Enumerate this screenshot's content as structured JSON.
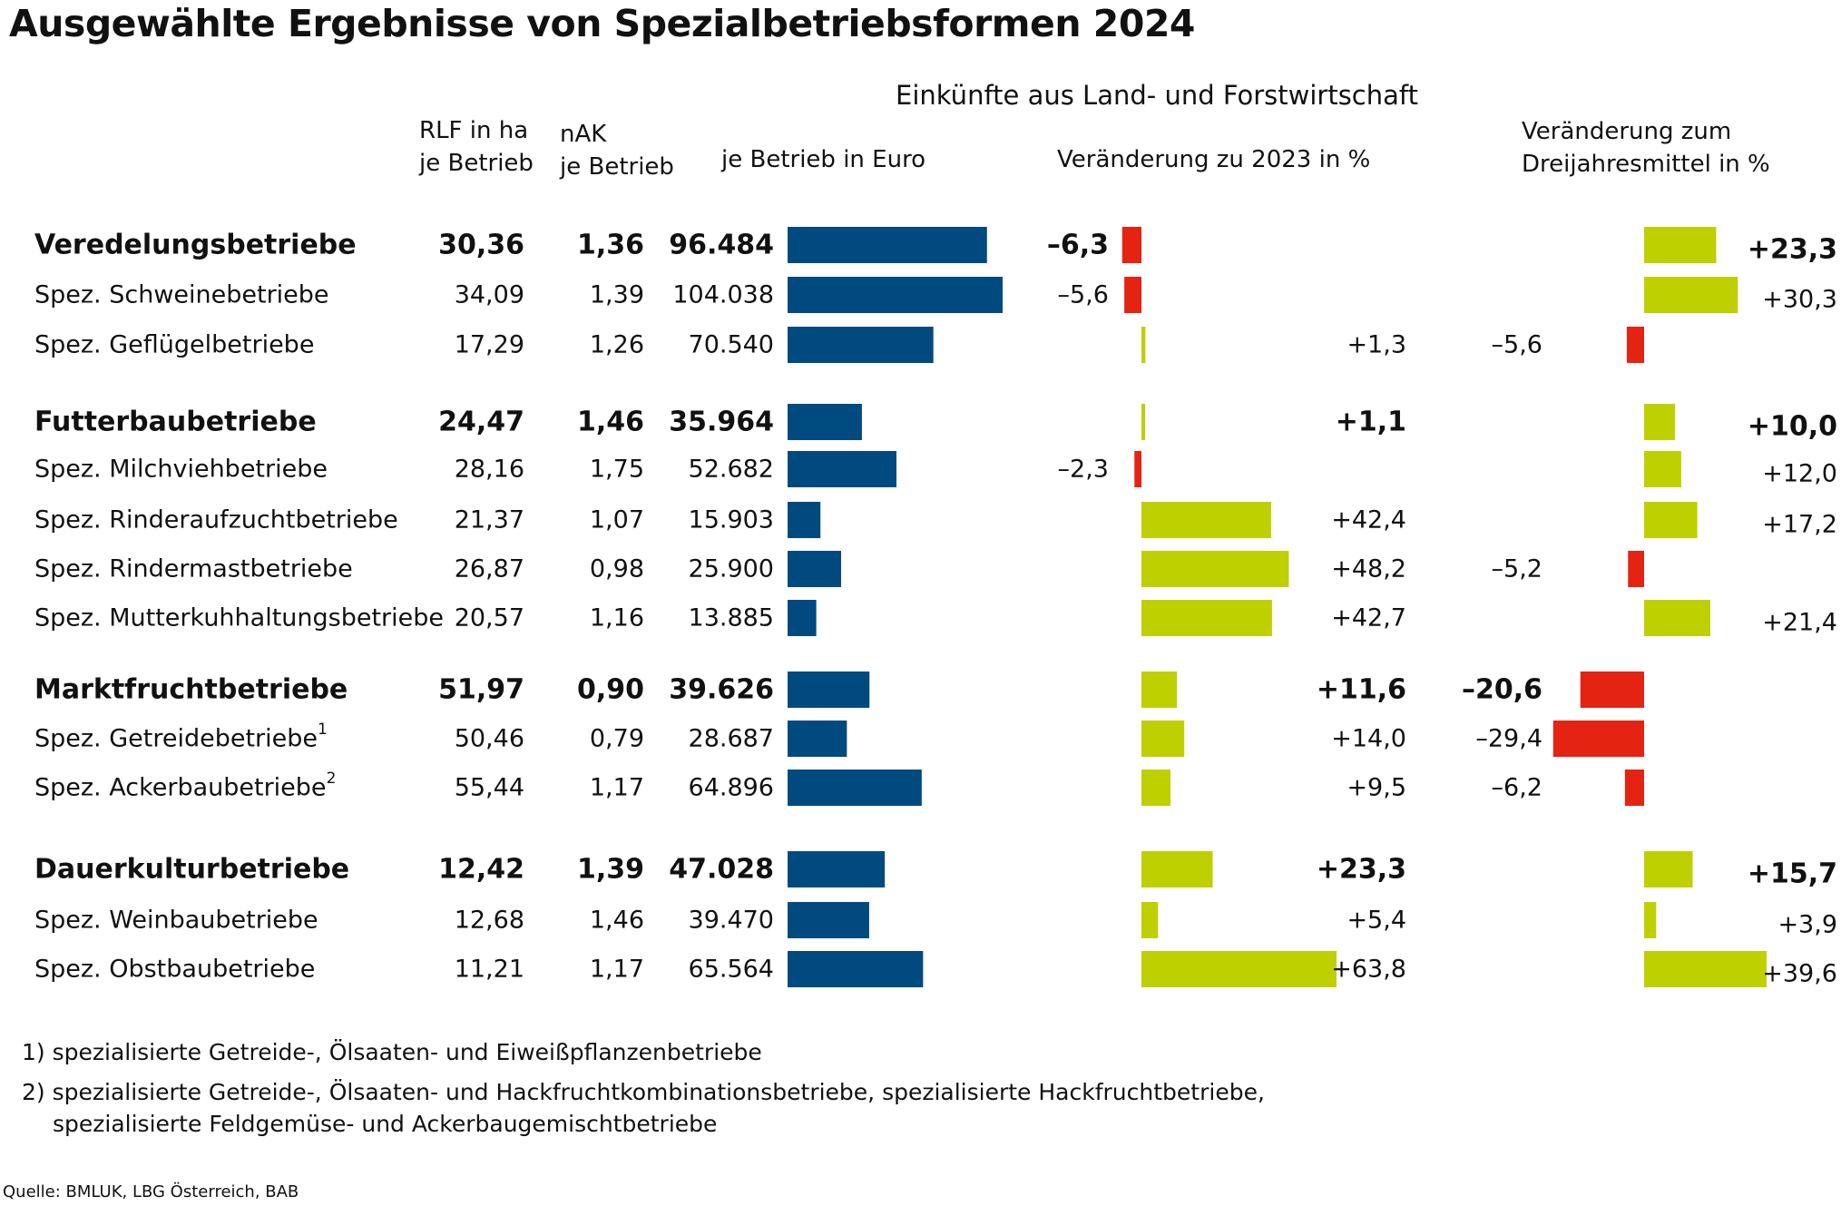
{
  "title": "Ausgewählte Ergebnisse von Spezialbetriebsformen 2024",
  "headers": {
    "rlf_line1": "RLF in ha",
    "rlf_line2": "je Betrieb",
    "nak_line1": "nAK",
    "nak_line2": "je Betrieb",
    "einkuenfte_group": "Einkünfte aus Land- und Forstwirtschaft",
    "je_betrieb_euro": "je Betrieb in Euro",
    "veraenderung_2023": "Veränderung zu 2023 in %",
    "dreijahres_line1": "Veränderung zum",
    "dreijahres_line2": "Dreijahresmittel in %"
  },
  "colors": {
    "income_bar": "#004a80",
    "positive_bar": "#bfd000",
    "negative_bar": "#e42313",
    "text": "#111111"
  },
  "chart_data": {
    "type": "bar",
    "rows": [
      {
        "label": "Veredelungsbetriebe",
        "sup": "",
        "bold": true,
        "rlf": "30,36",
        "nak": "1,36",
        "einkuenfte": 96484,
        "einkuenfte_label": "96.484",
        "chg2023": -6.3,
        "chg2023_label": "–6,3",
        "chg3y": 23.3,
        "chg3y_label": "+23,3"
      },
      {
        "label": "Spez. Schweinebetriebe",
        "sup": "",
        "bold": false,
        "rlf": "34,09",
        "nak": "1,39",
        "einkuenfte": 104038,
        "einkuenfte_label": "104.038",
        "chg2023": -5.6,
        "chg2023_label": "–5,6",
        "chg3y": 30.3,
        "chg3y_label": "+30,3"
      },
      {
        "label": "Spez. Geflügelbetriebe",
        "sup": "",
        "bold": false,
        "rlf": "17,29",
        "nak": "1,26",
        "einkuenfte": 70540,
        "einkuenfte_label": "70.540",
        "chg2023": 1.3,
        "chg2023_label": "+1,3",
        "chg3y": -5.6,
        "chg3y_label": "–5,6"
      },
      {
        "label": "Futterbaubetriebe",
        "sup": "",
        "bold": true,
        "rlf": "24,47",
        "nak": "1,46",
        "einkuenfte": 35964,
        "einkuenfte_label": "35.964",
        "chg2023": 1.1,
        "chg2023_label": "+1,1",
        "chg3y": 10.0,
        "chg3y_label": "+10,0"
      },
      {
        "label": "Spez. Milchviehbetriebe",
        "sup": "",
        "bold": false,
        "rlf": "28,16",
        "nak": "1,75",
        "einkuenfte": 52682,
        "einkuenfte_label": "52.682",
        "chg2023": -2.3,
        "chg2023_label": "–2,3",
        "chg3y": 12.0,
        "chg3y_label": "+12,0"
      },
      {
        "label": "Spez. Rinderaufzuchtbetriebe",
        "sup": "",
        "bold": false,
        "rlf": "21,37",
        "nak": "1,07",
        "einkuenfte": 15903,
        "einkuenfte_label": "15.903",
        "chg2023": 42.4,
        "chg2023_label": "+42,4",
        "chg3y": 17.2,
        "chg3y_label": "+17,2"
      },
      {
        "label": "Spez. Rindermastbetriebe",
        "sup": "",
        "bold": false,
        "rlf": "26,87",
        "nak": "0,98",
        "einkuenfte": 25900,
        "einkuenfte_label": "25.900",
        "chg2023": 48.2,
        "chg2023_label": "+48,2",
        "chg3y": -5.2,
        "chg3y_label": "–5,2"
      },
      {
        "label": "Spez. Mutterkuhhaltungsbetriebe",
        "sup": "",
        "bold": false,
        "rlf": "20,57",
        "nak": "1,16",
        "einkuenfte": 13885,
        "einkuenfte_label": "13.885",
        "chg2023": 42.7,
        "chg2023_label": "+42,7",
        "chg3y": 21.4,
        "chg3y_label": "+21,4"
      },
      {
        "label": "Marktfruchtbetriebe",
        "sup": "",
        "bold": true,
        "rlf": "51,97",
        "nak": "0,90",
        "einkuenfte": 39626,
        "einkuenfte_label": "39.626",
        "chg2023": 11.6,
        "chg2023_label": "+11,6",
        "chg3y": -20.6,
        "chg3y_label": "–20,6"
      },
      {
        "label": "Spez. Getreidebetriebe",
        "sup": "1",
        "bold": false,
        "rlf": "50,46",
        "nak": "0,79",
        "einkuenfte": 28687,
        "einkuenfte_label": "28.687",
        "chg2023": 14.0,
        "chg2023_label": "+14,0",
        "chg3y": -29.4,
        "chg3y_label": "–29,4"
      },
      {
        "label": "Spez. Ackerbaubetriebe",
        "sup": "2",
        "bold": false,
        "rlf": "55,44",
        "nak": "1,17",
        "einkuenfte": 64896,
        "einkuenfte_label": "64.896",
        "chg2023": 9.5,
        "chg2023_label": "+9,5",
        "chg3y": -6.2,
        "chg3y_label": "–6,2"
      },
      {
        "label": "Dauerkulturbetriebe",
        "sup": "",
        "bold": true,
        "rlf": "12,42",
        "nak": "1,39",
        "einkuenfte": 47028,
        "einkuenfte_label": "47.028",
        "chg2023": 23.3,
        "chg2023_label": "+23,3",
        "chg3y": 15.7,
        "chg3y_label": "+15,7"
      },
      {
        "label": "Spez. Weinbaubetriebe",
        "sup": "",
        "bold": false,
        "rlf": "12,68",
        "nak": "1,46",
        "einkuenfte": 39470,
        "einkuenfte_label": "39.470",
        "chg2023": 5.4,
        "chg2023_label": "+5,4",
        "chg3y": 3.9,
        "chg3y_label": "+3,9"
      },
      {
        "label": "Spez. Obstbaubetriebe",
        "sup": "",
        "bold": false,
        "rlf": "11,21",
        "nak": "1,17",
        "einkuenfte": 65564,
        "einkuenfte_label": "65.564",
        "chg2023": 63.8,
        "chg2023_label": "+63,8",
        "chg3y": 39.6,
        "chg3y_label": "+39,6"
      }
    ]
  },
  "footnotes": [
    "1)  spezialisierte Getreide-, Ölsaaten- und Eiweißpflanzenbetriebe",
    "2) spezialisierte Getreide-, Ölsaaten- und Hackfruchtkombinationsbetriebe, spezialisierte Hackfruchtbetriebe,",
    "spezialisierte Feldgemüse- und Ackerbaugemischtbetriebe"
  ],
  "source": "Quelle: BMLUK, LBG Österreich, BAB"
}
